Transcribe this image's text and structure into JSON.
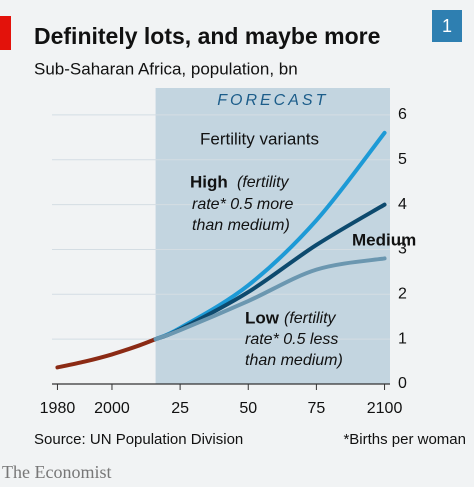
{
  "chart_data": {
    "type": "line",
    "title": "Definitely lots, and maybe more",
    "subtitle": "Sub-Saharan Africa, population, bn",
    "chart_number": "1",
    "shade": {
      "label": "FORECAST",
      "from": 2016,
      "to": 2102,
      "color": "#c3d5e0"
    },
    "series": [
      {
        "color": "#8b2a14",
        "x": [
          1980,
          1990,
          2000,
          2010,
          2016
        ],
        "values": [
          0.37,
          0.5,
          0.66,
          0.86,
          1.0
        ]
      },
      {
        "name": "High",
        "color": "#1d9ad6",
        "x": [
          2016,
          2025,
          2050,
          2075,
          2100
        ],
        "values": [
          1.0,
          1.25,
          2.2,
          3.65,
          5.6
        ]
      },
      {
        "name": "Medium",
        "color": "#0d4a6e",
        "x": [
          2016,
          2025,
          2050,
          2075,
          2100
        ],
        "values": [
          1.0,
          1.22,
          2.05,
          3.1,
          4.0
        ]
      },
      {
        "name": "Low",
        "color": "#6b97b0",
        "x": [
          2016,
          2025,
          2050,
          2075,
          2100
        ],
        "values": [
          1.0,
          1.2,
          1.85,
          2.55,
          2.8
        ]
      }
    ],
    "annotations": [
      "Fertility variants",
      "(fertility",
      "rate* 0.5 more",
      "than medium)",
      "(fertility",
      "rate* 0.5 less",
      "than medium)"
    ],
    "xlim": [
      1978,
      2102
    ],
    "xticks": [
      1980,
      2000,
      {
        "value": 2025,
        "label": "25"
      },
      {
        "value": 2050,
        "label": "50"
      },
      {
        "value": 2075,
        "label": "75"
      },
      2100
    ],
    "ylim": [
      0,
      6.6
    ],
    "yticks": [
      0,
      1,
      2,
      3,
      4,
      5,
      6
    ],
    "grid": true,
    "source": "Source: UN Population Division",
    "footnote": "*Births per woman",
    "brand": "The Economist"
  }
}
